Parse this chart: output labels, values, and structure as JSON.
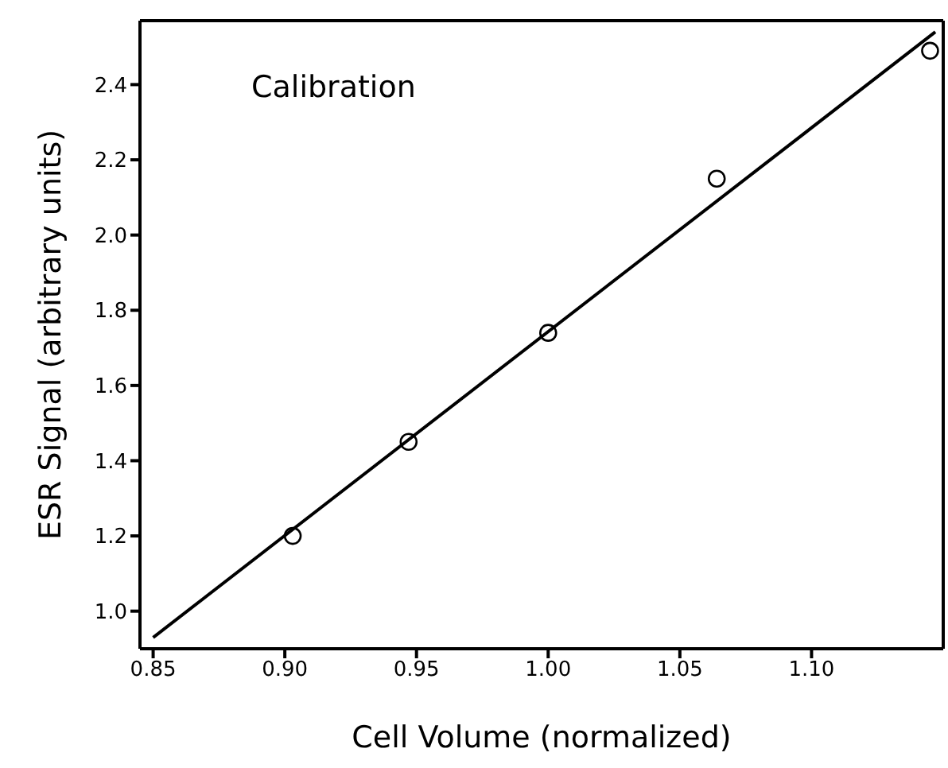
{
  "chart_data": {
    "type": "scatter",
    "xlabel": "Cell Volume (normalized)",
    "ylabel": "ESR Signal (arbitrary units)",
    "annotations": [
      "Calibration"
    ],
    "xlim": [
      0.845,
      1.15
    ],
    "xticks": [
      {
        "value": 0.85,
        "label": "0.85"
      },
      {
        "value": 0.9,
        "label": "0.90"
      },
      {
        "value": 0.95,
        "label": "0.95"
      },
      {
        "value": 1.0,
        "label": "1.00"
      },
      {
        "value": 1.05,
        "label": "1.05"
      },
      {
        "value": 1.1,
        "label": "1.10"
      }
    ],
    "ylim": [
      0.9,
      2.57
    ],
    "yticks": [
      {
        "value": 1.0,
        "label": "1.0"
      },
      {
        "value": 1.2,
        "label": "1.2"
      },
      {
        "value": 1.4,
        "label": "1.4"
      },
      {
        "value": 1.6,
        "label": "1.6"
      },
      {
        "value": 1.8,
        "label": "1.8"
      },
      {
        "value": 2.0,
        "label": "2.0"
      },
      {
        "value": 2.2,
        "label": "2.2"
      },
      {
        "value": 2.4,
        "label": "2.4"
      }
    ],
    "legend": false,
    "marker": "circle",
    "series": [
      {
        "color": "#000000",
        "x": [
          0.903,
          0.947,
          1.0,
          1.064,
          1.145
        ],
        "values": [
          1.2,
          1.45,
          1.74,
          2.15,
          2.49
        ]
      },
      {
        "type": "line",
        "color": "#000000",
        "marker": "none",
        "line_style": "solid",
        "x": [
          0.85,
          1.147
        ],
        "values": [
          0.93,
          2.54
        ]
      }
    ]
  }
}
